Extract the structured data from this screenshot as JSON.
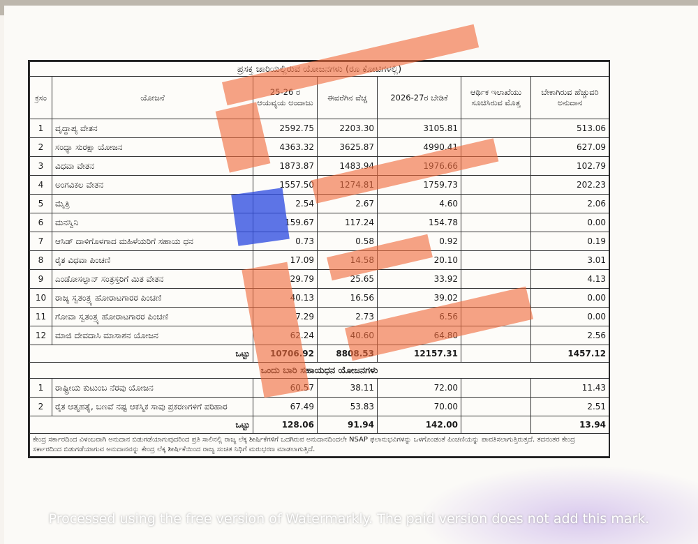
{
  "table": {
    "title": "ಪ್ರಸಕ್ತ ಜಾರಿಯಲ್ಲಿರುವ ಯೋಜನಗಳು (ರೂ ಕೋಟಿಗಳಲ್ಲಿ)",
    "headers": {
      "sr": "ಕ್ರಸಂ",
      "scheme": "ಯೋಜನೆ",
      "budget_2526": "25-26 ರ ಆಯವ್ಯಯ ಅಂದಾಜು",
      "expense": "ಈವರೆಗಿನ ವೆಚ್ಚ",
      "demand_2627": "2026-27ರ ಬೇಡಿಕೆ",
      "finance_dept": "ಆರ್ಥಿಕ ಇಲಾಖೆಯು ಸೂಚಿಸಿರುವ ಮೊತ್ತ",
      "additional": "ಬೇಕಾಗಿರುವ ಹೆಚ್ಚುವರಿ ಅನುದಾನ"
    },
    "rows": [
      {
        "sr": "1",
        "name": "ವೃದ್ಧಾಪ್ಯ ವೇತನ",
        "b": "2592.75",
        "e": "2203.30",
        "d": "3105.81",
        "f": "",
        "a": "513.06"
      },
      {
        "sr": "2",
        "name": "ಸಂಧ್ಯಾ ಸುರಕ್ಷಾ ಯೋಜನ",
        "b": "4363.32",
        "e": "3625.87",
        "d": "4990.41",
        "f": "",
        "a": "627.09"
      },
      {
        "sr": "3",
        "name": "ವಿಧವಾ ವೇತನ",
        "b": "1873.87",
        "e": "1483.94",
        "d": "1976.66",
        "f": "",
        "a": "102.79"
      },
      {
        "sr": "4",
        "name": "ಅಂಗವಿಕಲ ವೇತನ",
        "b": "1557.50",
        "e": "1274.81",
        "d": "1759.73",
        "f": "",
        "a": "202.23"
      },
      {
        "sr": "5",
        "name": "ಮೈತ್ರಿ",
        "b": "2.54",
        "e": "2.67",
        "d": "4.60",
        "f": "",
        "a": "2.06"
      },
      {
        "sr": "6",
        "name": "ಮನಸ್ವಿನಿ",
        "b": "159.67",
        "e": "117.24",
        "d": "154.78",
        "f": "",
        "a": "0.00"
      },
      {
        "sr": "7",
        "name": "ಆಸಿಡ್ ದಾಳಿಗೊಳಗಾದ ಮಹಿಳೆಯರಿಗೆ ಸಹಾಯ ಧನ",
        "b": "0.73",
        "e": "0.58",
        "d": "0.92",
        "f": "",
        "a": "0.19"
      },
      {
        "sr": "8",
        "name": "ರೈತ ವಿಧವಾ ಪಿಂಚಣಿ",
        "b": "17.09",
        "e": "14.58",
        "d": "20.10",
        "f": "",
        "a": "3.01"
      },
      {
        "sr": "9",
        "name": "ಎಂಡೋಸಲ್ಫಾನ್ ಸಂತ್ರಸ್ತರಿಗೆ ಮಿತ ವೇತನ",
        "b": "29.79",
        "e": "25.65",
        "d": "33.92",
        "f": "",
        "a": "4.13"
      },
      {
        "sr": "10",
        "name": "ರಾಜ್ಯ ಸ್ವತಂತ್ರ್ಯ ಹೋರಾಟಗಾರರ ಪಿಂಚಣಿ",
        "b": "40.13",
        "e": "16.56",
        "d": "39.02",
        "f": "",
        "a": "0.00"
      },
      {
        "sr": "11",
        "name": "ಗೋವಾ ಸ್ವತಂತ್ರ್ಯ ಹೋರಾಟಗಾರರ ಪಿಂಚಣಿ",
        "b": "7.29",
        "e": "2.73",
        "d": "6.56",
        "f": "",
        "a": "0.00"
      },
      {
        "sr": "12",
        "name": "ಮಾಜಿ ದೇವದಾಸಿ ಮಾಸಾಶನ ಯೋಜನ",
        "b": "62.24",
        "e": "40.60",
        "d": "64.80",
        "f": "",
        "a": "2.56"
      }
    ],
    "total1": {
      "label": "ಒಟ್ಟು",
      "b": "10706.92",
      "e": "8808.53",
      "d": "12157.31",
      "a": "1457.12"
    },
    "section2_title": "ಒಂದು ಬಾರಿ ಸಹಾಯಧನ ಯೋಜನಗಳು",
    "rows2": [
      {
        "sr": "1",
        "name": "ರಾಷ್ಟ್ರೀಯ ಕುಟುಂಬ ನೆರವು ಯೋಜನ",
        "b": "60.57",
        "e": "38.11",
        "d": "72.00",
        "f": "",
        "a": "11.43"
      },
      {
        "sr": "2",
        "name": "ರೈತ ಆತ್ಮಹತ್ಯೆ, ಬಣವೆ ನಷ್ಟ ಆಕಸ್ಮಿಕ ಸಾವು ಪ್ರಕರಣಗಳಿಗೆ ಪರಿಹಾರ",
        "b": "67.49",
        "e": "53.83",
        "d": "70.00",
        "f": "",
        "a": "2.51"
      }
    ],
    "total2": {
      "label": "ಒಟ್ಟು",
      "b": "128.06",
      "e": "91.94",
      "d": "142.00",
      "a": "13.94"
    },
    "footnote": "ಕೇಂದ್ರ ಸರ್ಕಾರದಿಂದ ವಿಳಂಬವಾಗಿ ಅನುದಾನ ಬಿಡುಗಡೆಯಾಗುವುದರಿಂದ ಪ್ರತಿ ಸಾಲಿನಲ್ಲಿ ರಾಜ್ಯ ಲೆಕ್ಕ ಶೀರ್ಷಿಕೆಗಳಿಗೆ ಒದಗಿರುವ ಅನುದಾನದಿಂದಲೇ NSAP ಫಲಾನುಭವಿಗಳನ್ನು ಒಳಗೊಂಡಂತೆ ಪಿಂಚಣಿಯನ್ನು ಪಾವತಿಸಲಾಗುತ್ತಿರುತ್ತದೆ. ತದನಂತರ ಕೇಂದ್ರ ಸರ್ಕಾರದಿಂದ ಬಿಡುಗಡೆಯಾಗುವ ಅನುದಾನವನ್ನು ಕೇಂದ್ರ ಲೆಕ್ಕ ಶೀರ್ಷಿಕೆಯಿಂದ ರಾಜ್ಯ ಸಂಚಿತ ನಿಧಿಗೆ ಮರುಭರಣ ಮಾಡಲಾಗುತ್ತಿದೆ."
  },
  "watermark": "Processed using the free version of Watermarkly. The paid version does not add this mark.",
  "colors": {
    "overlay_orange": "#f06a3c",
    "overlay_blue": "#2f4de0"
  }
}
